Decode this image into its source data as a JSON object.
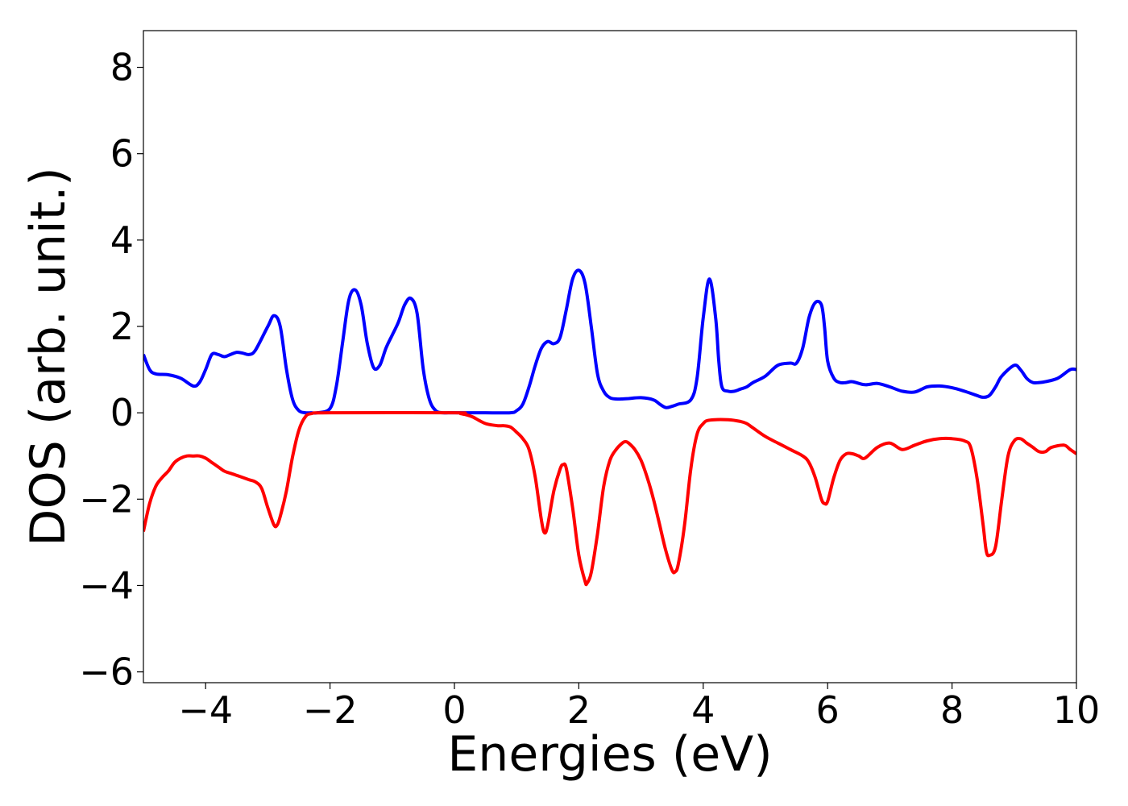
{
  "chart_data": {
    "type": "line",
    "title": "",
    "xlabel": "Energies (eV)",
    "ylabel": "DOS (arb. unit.)",
    "xlim": [
      -5,
      10
    ],
    "ylim": [
      -6.25,
      8.85
    ],
    "xticks": [
      -4,
      -2,
      0,
      2,
      4,
      6,
      8,
      10
    ],
    "yticks": [
      -6,
      -4,
      -2,
      0,
      2,
      4,
      6,
      8
    ],
    "grid": false,
    "legend": "none",
    "series": [
      {
        "color": "#0000ff",
        "x": [
          -5.0,
          -4.9,
          -4.8,
          -4.6,
          -4.4,
          -4.2,
          -4.1,
          -4.0,
          -3.9,
          -3.8,
          -3.7,
          -3.6,
          -3.5,
          -3.4,
          -3.3,
          -3.2,
          -3.0,
          -2.9,
          -2.8,
          -2.7,
          -2.6,
          -2.5,
          -2.4,
          -2.3,
          -2.2,
          -2.0,
          -1.9,
          -1.8,
          -1.7,
          -1.6,
          -1.5,
          -1.4,
          -1.3,
          -1.2,
          -1.1,
          -1.0,
          -0.9,
          -0.8,
          -0.7,
          -0.6,
          -0.5,
          -0.4,
          -0.3,
          -0.2,
          -0.1,
          0.0,
          0.5,
          0.9,
          1.0,
          1.1,
          1.2,
          1.3,
          1.4,
          1.5,
          1.6,
          1.7,
          1.8,
          1.9,
          2.0,
          2.1,
          2.2,
          2.3,
          2.4,
          2.5,
          2.6,
          2.7,
          2.8,
          3.0,
          3.2,
          3.3,
          3.4,
          3.5,
          3.6,
          3.8,
          3.9,
          4.0,
          4.1,
          4.2,
          4.25,
          4.3,
          4.4,
          4.5,
          4.6,
          4.7,
          4.8,
          5.0,
          5.2,
          5.4,
          5.5,
          5.6,
          5.7,
          5.8,
          5.9,
          5.95,
          6.0,
          6.1,
          6.2,
          6.3,
          6.4,
          6.6,
          6.8,
          7.0,
          7.2,
          7.4,
          7.6,
          7.8,
          8.0,
          8.2,
          8.4,
          8.5,
          8.6,
          8.7,
          8.8,
          9.0,
          9.1,
          9.2,
          9.3,
          9.4,
          9.5,
          9.7,
          9.9,
          10.0
        ],
        "y": [
          1.35,
          1.0,
          0.9,
          0.88,
          0.8,
          0.62,
          0.7,
          1.0,
          1.35,
          1.35,
          1.3,
          1.35,
          1.4,
          1.38,
          1.35,
          1.45,
          2.0,
          2.25,
          2.0,
          1.0,
          0.3,
          0.05,
          0.0,
          0.0,
          0.0,
          0.1,
          0.6,
          1.6,
          2.6,
          2.85,
          2.5,
          1.6,
          1.05,
          1.1,
          1.5,
          1.8,
          2.1,
          2.5,
          2.65,
          2.3,
          1.0,
          0.3,
          0.05,
          0.0,
          0.0,
          0.0,
          0.0,
          0.0,
          0.05,
          0.2,
          0.6,
          1.1,
          1.5,
          1.65,
          1.6,
          1.75,
          2.4,
          3.1,
          3.3,
          3.0,
          2.0,
          0.9,
          0.5,
          0.35,
          0.32,
          0.32,
          0.33,
          0.35,
          0.3,
          0.2,
          0.12,
          0.15,
          0.2,
          0.3,
          0.8,
          2.2,
          3.1,
          2.2,
          1.2,
          0.6,
          0.5,
          0.5,
          0.55,
          0.6,
          0.7,
          0.85,
          1.1,
          1.15,
          1.15,
          1.5,
          2.2,
          2.55,
          2.5,
          2.0,
          1.2,
          0.8,
          0.7,
          0.7,
          0.72,
          0.65,
          0.68,
          0.6,
          0.5,
          0.48,
          0.6,
          0.62,
          0.58,
          0.5,
          0.4,
          0.36,
          0.4,
          0.6,
          0.85,
          1.1,
          1.0,
          0.8,
          0.7,
          0.7,
          0.72,
          0.8,
          1.0,
          1.0
        ]
      },
      {
        "color": "#ff0000",
        "x": [
          -5.0,
          -4.9,
          -4.8,
          -4.7,
          -4.6,
          -4.5,
          -4.4,
          -4.3,
          -4.2,
          -4.1,
          -4.0,
          -3.9,
          -3.8,
          -3.7,
          -3.6,
          -3.5,
          -3.4,
          -3.3,
          -3.2,
          -3.1,
          -3.0,
          -2.9,
          -2.85,
          -2.8,
          -2.7,
          -2.6,
          -2.5,
          -2.4,
          -2.3,
          -2.0,
          0.0,
          0.1,
          0.2,
          0.3,
          0.4,
          0.5,
          0.6,
          0.7,
          0.8,
          0.9,
          1.0,
          1.1,
          1.2,
          1.3,
          1.4,
          1.45,
          1.5,
          1.6,
          1.7,
          1.75,
          1.8,
          1.9,
          2.0,
          2.1,
          2.13,
          2.2,
          2.3,
          2.4,
          2.5,
          2.6,
          2.7,
          2.75,
          2.8,
          2.9,
          3.0,
          3.1,
          3.2,
          3.3,
          3.4,
          3.5,
          3.55,
          3.6,
          3.7,
          3.8,
          3.9,
          4.0,
          4.1,
          4.4,
          4.6,
          4.7,
          4.8,
          5.0,
          5.2,
          5.4,
          5.6,
          5.7,
          5.8,
          5.9,
          5.95,
          6.0,
          6.1,
          6.2,
          6.3,
          6.4,
          6.5,
          6.6,
          6.8,
          7.0,
          7.2,
          7.4,
          7.6,
          7.8,
          8.0,
          8.2,
          8.3,
          8.4,
          8.5,
          8.55,
          8.6,
          8.7,
          8.8,
          8.9,
          9.0,
          9.1,
          9.2,
          9.3,
          9.4,
          9.5,
          9.6,
          9.8,
          9.9,
          10.0
        ],
        "y": [
          -2.75,
          -2.1,
          -1.7,
          -1.5,
          -1.35,
          -1.15,
          -1.05,
          -1.0,
          -1.0,
          -1.0,
          -1.05,
          -1.15,
          -1.25,
          -1.35,
          -1.4,
          -1.45,
          -1.5,
          -1.55,
          -1.6,
          -1.75,
          -2.2,
          -2.6,
          -2.6,
          -2.4,
          -1.8,
          -1.0,
          -0.4,
          -0.1,
          -0.02,
          0.0,
          0.0,
          -0.02,
          -0.05,
          -0.1,
          -0.18,
          -0.25,
          -0.28,
          -0.3,
          -0.3,
          -0.33,
          -0.45,
          -0.6,
          -0.85,
          -1.5,
          -2.5,
          -2.78,
          -2.6,
          -1.8,
          -1.3,
          -1.2,
          -1.3,
          -2.2,
          -3.3,
          -3.9,
          -3.95,
          -3.7,
          -2.8,
          -1.7,
          -1.1,
          -0.85,
          -0.7,
          -0.67,
          -0.7,
          -0.85,
          -1.1,
          -1.5,
          -2.0,
          -2.6,
          -3.2,
          -3.65,
          -3.68,
          -3.5,
          -2.6,
          -1.3,
          -0.5,
          -0.25,
          -0.17,
          -0.16,
          -0.2,
          -0.25,
          -0.35,
          -0.55,
          -0.7,
          -0.85,
          -1.0,
          -1.15,
          -1.5,
          -2.0,
          -2.1,
          -2.05,
          -1.5,
          -1.1,
          -0.95,
          -0.95,
          -1.0,
          -1.05,
          -0.8,
          -0.7,
          -0.85,
          -0.75,
          -0.65,
          -0.6,
          -0.6,
          -0.65,
          -0.8,
          -1.5,
          -2.6,
          -3.2,
          -3.3,
          -3.1,
          -2.0,
          -1.0,
          -0.65,
          -0.6,
          -0.7,
          -0.8,
          -0.9,
          -0.9,
          -0.8,
          -0.75,
          -0.85,
          -0.95
        ]
      }
    ]
  }
}
